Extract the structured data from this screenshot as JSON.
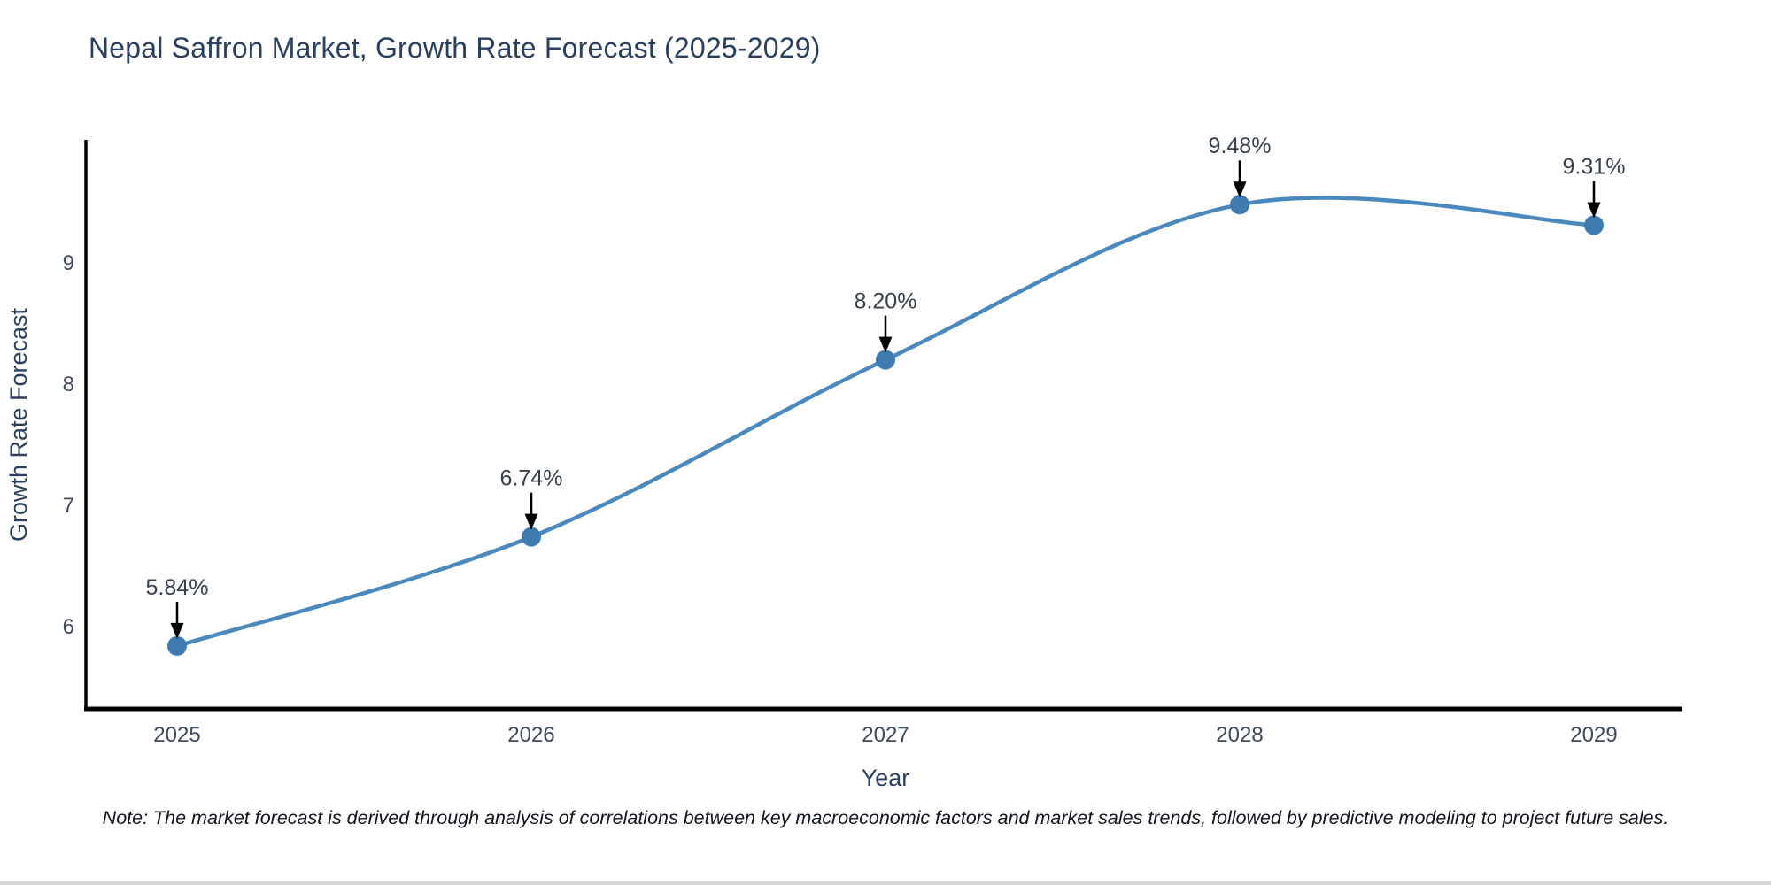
{
  "chart": {
    "title": "Nepal Saffron Market, Growth Rate Forecast (2025-2029)"
  },
  "note": "Note: The market forecast is derived through analysis of correlations between key macroeconomic factors and market sales trends, followed by predictive modeling to project future sales.",
  "chart_data": {
    "type": "line",
    "title": "Nepal Saffron Market, Growth Rate Forecast (2025-2029)",
    "x": [
      "2025",
      "2026",
      "2027",
      "2028",
      "2029"
    ],
    "values": [
      5.84,
      6.74,
      8.2,
      9.48,
      9.31
    ],
    "point_labels": [
      "5.84%",
      "6.74%",
      "8.20%",
      "9.48%",
      "9.31%"
    ],
    "xlabel": "Year",
    "ylabel": "Growth Rate Forecast",
    "yticks": [
      6,
      7,
      8,
      9
    ],
    "ylim": [
      5.3,
      10.0
    ],
    "line_shape": "spline",
    "grid": false,
    "legend": "none",
    "annotations": "value labels with down arrows above each point",
    "colors": {
      "line": "#4a88bd",
      "marker": "#3e7bb0",
      "axis": "#000000",
      "title_text": "#2a3f5f",
      "tick_text": "#3e4a5e",
      "annotation_text": "#36404f",
      "arrow": "#000000"
    }
  }
}
